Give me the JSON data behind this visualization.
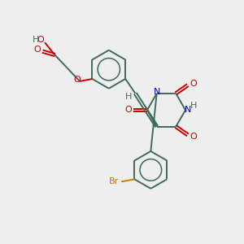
{
  "bg_color": "#eeeeee",
  "bond_color": "#3d6b5e",
  "N_color": "#0000cc",
  "O_color": "#cc0000",
  "Br_color": "#cc7700",
  "H_color": "#3d6b5e",
  "font_size": 8.0,
  "bond_width": 1.4,
  "dbo": 0.055,
  "xlim": [
    0,
    10
  ],
  "ylim": [
    0,
    10
  ]
}
